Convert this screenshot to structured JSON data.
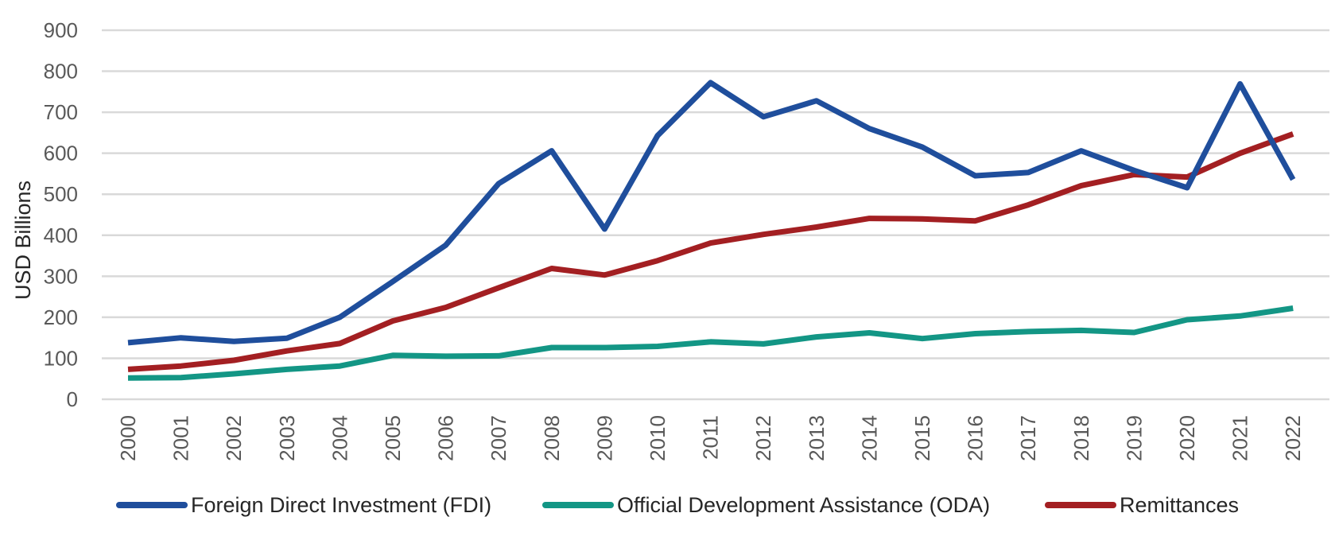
{
  "chart_data": {
    "type": "line",
    "title": "",
    "xlabel": "",
    "ylabel": "USD Billions",
    "ylim": [
      0,
      900
    ],
    "yticks": [
      0,
      100,
      200,
      300,
      400,
      500,
      600,
      700,
      800,
      900
    ],
    "grid": true,
    "legend_position": "bottom",
    "categories": [
      "2000",
      "2001",
      "2002",
      "2003",
      "2004",
      "2005",
      "2006",
      "2007",
      "2008",
      "2009",
      "2010",
      "2011",
      "2012",
      "2013",
      "2014",
      "2015",
      "2016",
      "2017",
      "2018",
      "2019",
      "2020",
      "2021",
      "2022"
    ],
    "series": [
      {
        "name": "Foreign Direct Investment (FDI)",
        "color": "#1f4e9c",
        "values": [
          138,
          150,
          141,
          149,
          200,
          287,
          376,
          526,
          606,
          415,
          643,
          772,
          689,
          728,
          660,
          615,
          545,
          553,
          606,
          558,
          516,
          769,
          536
        ]
      },
      {
        "name": "Official Development Assistance (ODA)",
        "color": "#139685",
        "values": [
          52,
          53,
          62,
          73,
          81,
          107,
          105,
          106,
          126,
          126,
          129,
          140,
          135,
          152,
          162,
          148,
          160,
          165,
          168,
          163,
          194,
          203,
          222
        ]
      },
      {
        "name": "Remittances",
        "color": "#a31f22",
        "values": [
          73,
          81,
          95,
          118,
          136,
          191,
          224,
          272,
          319,
          303,
          338,
          381,
          402,
          420,
          441,
          440,
          435,
          474,
          521,
          548,
          542,
          600,
          647
        ]
      }
    ]
  }
}
